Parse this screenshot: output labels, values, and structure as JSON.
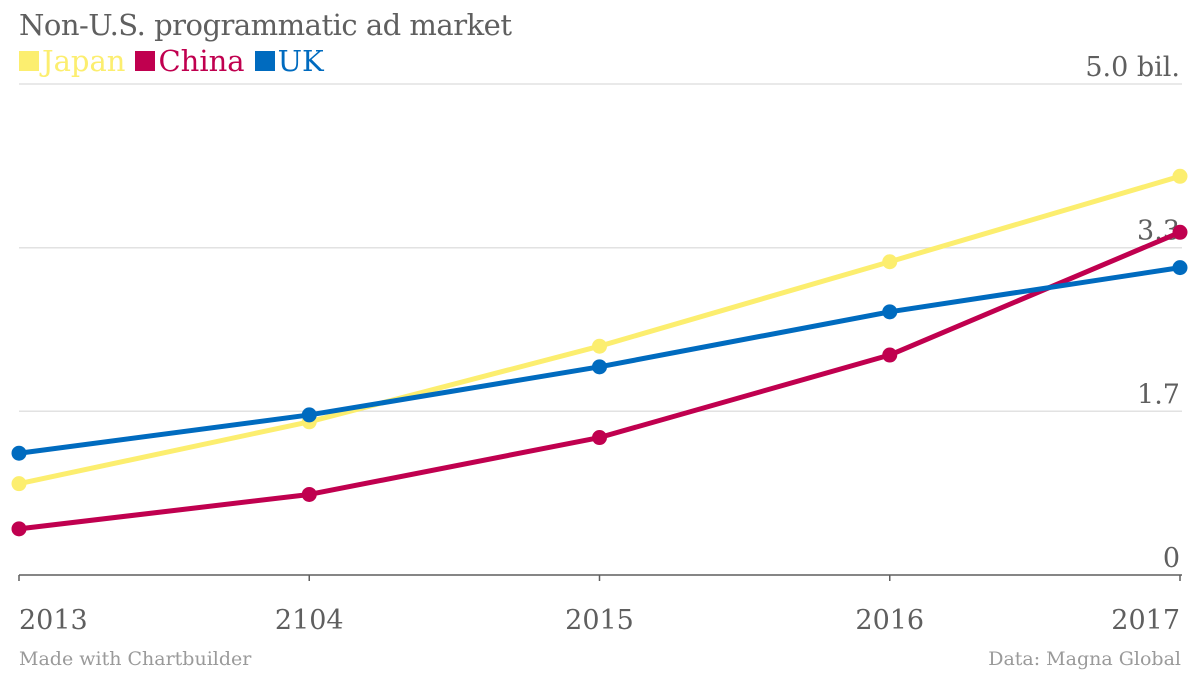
{
  "chart_data": {
    "type": "line",
    "title": "Non-U.S. programmatic ad market",
    "xlabel": "",
    "ylabel": "",
    "categories": [
      "2013",
      "2104",
      "2015",
      "2016",
      "2017"
    ],
    "ylim": [
      0,
      5.0
    ],
    "yticks": [
      0,
      1.667,
      3.333,
      5.0
    ],
    "ytick_labels": [
      "0",
      "1.7",
      "3.3",
      "5.0 bil."
    ],
    "grid": true,
    "legend_position": "top-left",
    "series": [
      {
        "name": "Japan",
        "color": "#fcee6f",
        "values": [
          0.93,
          1.56,
          2.33,
          3.19,
          4.06
        ]
      },
      {
        "name": "China",
        "color": "#c0004f",
        "values": [
          0.47,
          0.82,
          1.4,
          2.24,
          3.49
        ]
      },
      {
        "name": "UK",
        "color": "#006bbf",
        "values": [
          1.24,
          1.63,
          2.12,
          2.68,
          3.13
        ]
      }
    ]
  },
  "footer": {
    "credit": "Made with Chartbuilder",
    "source": "Data: Magna Global"
  }
}
